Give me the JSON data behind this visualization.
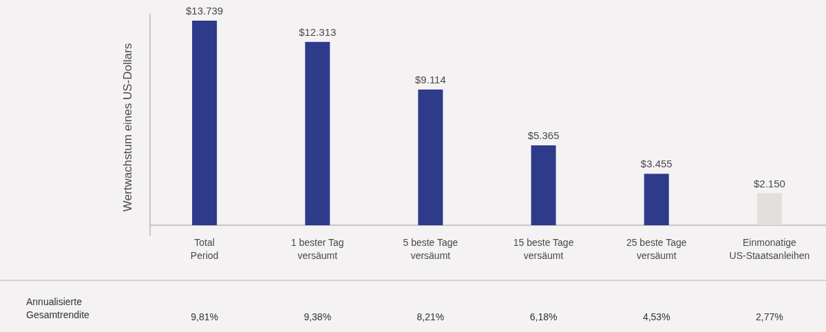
{
  "chart_data": {
    "type": "bar",
    "ylabel": "Wertwachstum eines US-Dollars",
    "categories": [
      "Total\nPeriod",
      "1 bester Tag\nversäumt",
      "5 beste Tage\nversäumt",
      "15 beste Tage\nversäumt",
      "25 beste Tage\nversäumt",
      "Einmonatige\nUS-Staatsanleihen"
    ],
    "values": [
      13739,
      12313,
      9114,
      5365,
      3455,
      2150
    ],
    "value_labels": [
      "$13.739",
      "$12.313",
      "$9.114",
      "$5.365",
      "$3.455",
      "$2.150"
    ],
    "colors": [
      "#2e3a8a",
      "#2e3a8a",
      "#2e3a8a",
      "#2e3a8a",
      "#2e3a8a",
      "#e2e0dc"
    ],
    "annotations": [
      "Annualisierte\nGesamtrendite",
      "9,81%",
      "9,38%",
      "8,21%",
      "6,18%",
      "4,53%",
      "2,77%"
    ]
  }
}
